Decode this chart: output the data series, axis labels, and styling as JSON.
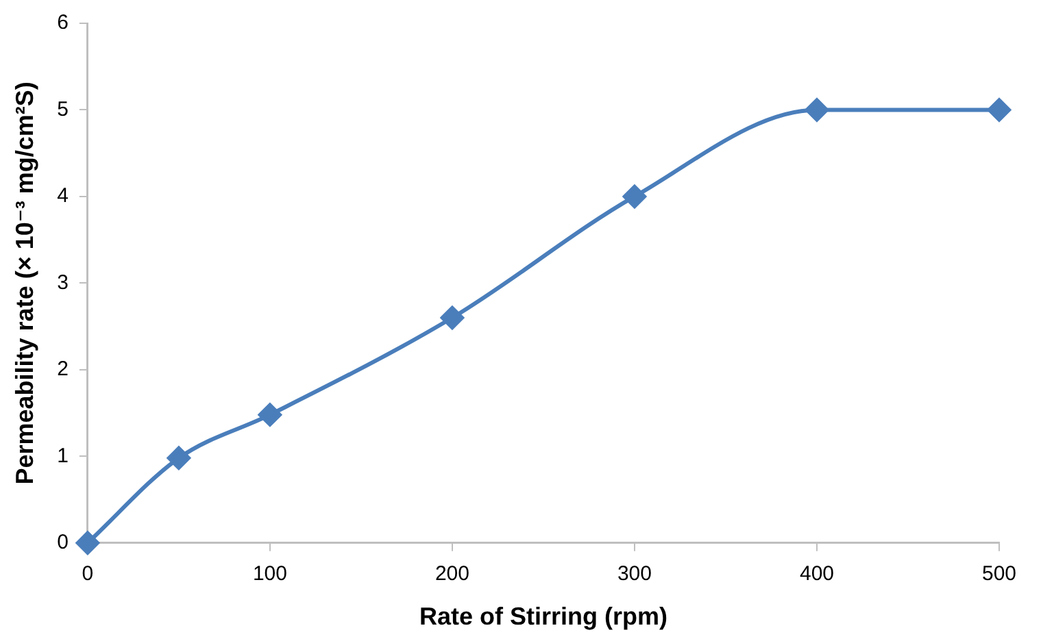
{
  "chart_data": {
    "type": "line",
    "xlabel": "Rate of Stirring (rpm)",
    "ylabel": "Permeability rate (× 10⁻³ mg/cm²S)",
    "x": [
      0,
      50,
      100,
      200,
      300,
      400,
      500
    ],
    "series": [
      {
        "color": "#4a7ebb",
        "values": [
          0,
          0.98,
          1.48,
          2.6,
          4.0,
          5.0,
          5.0
        ]
      }
    ],
    "xlim": [
      0,
      500
    ],
    "xticks": [
      0,
      100,
      200,
      300,
      400,
      500
    ],
    "ylim": [
      0,
      6
    ],
    "yticks": [
      0,
      1,
      2,
      3,
      4,
      5,
      6
    ],
    "grid": false,
    "legend": false,
    "marker": "diamond",
    "line_style": "solid"
  }
}
